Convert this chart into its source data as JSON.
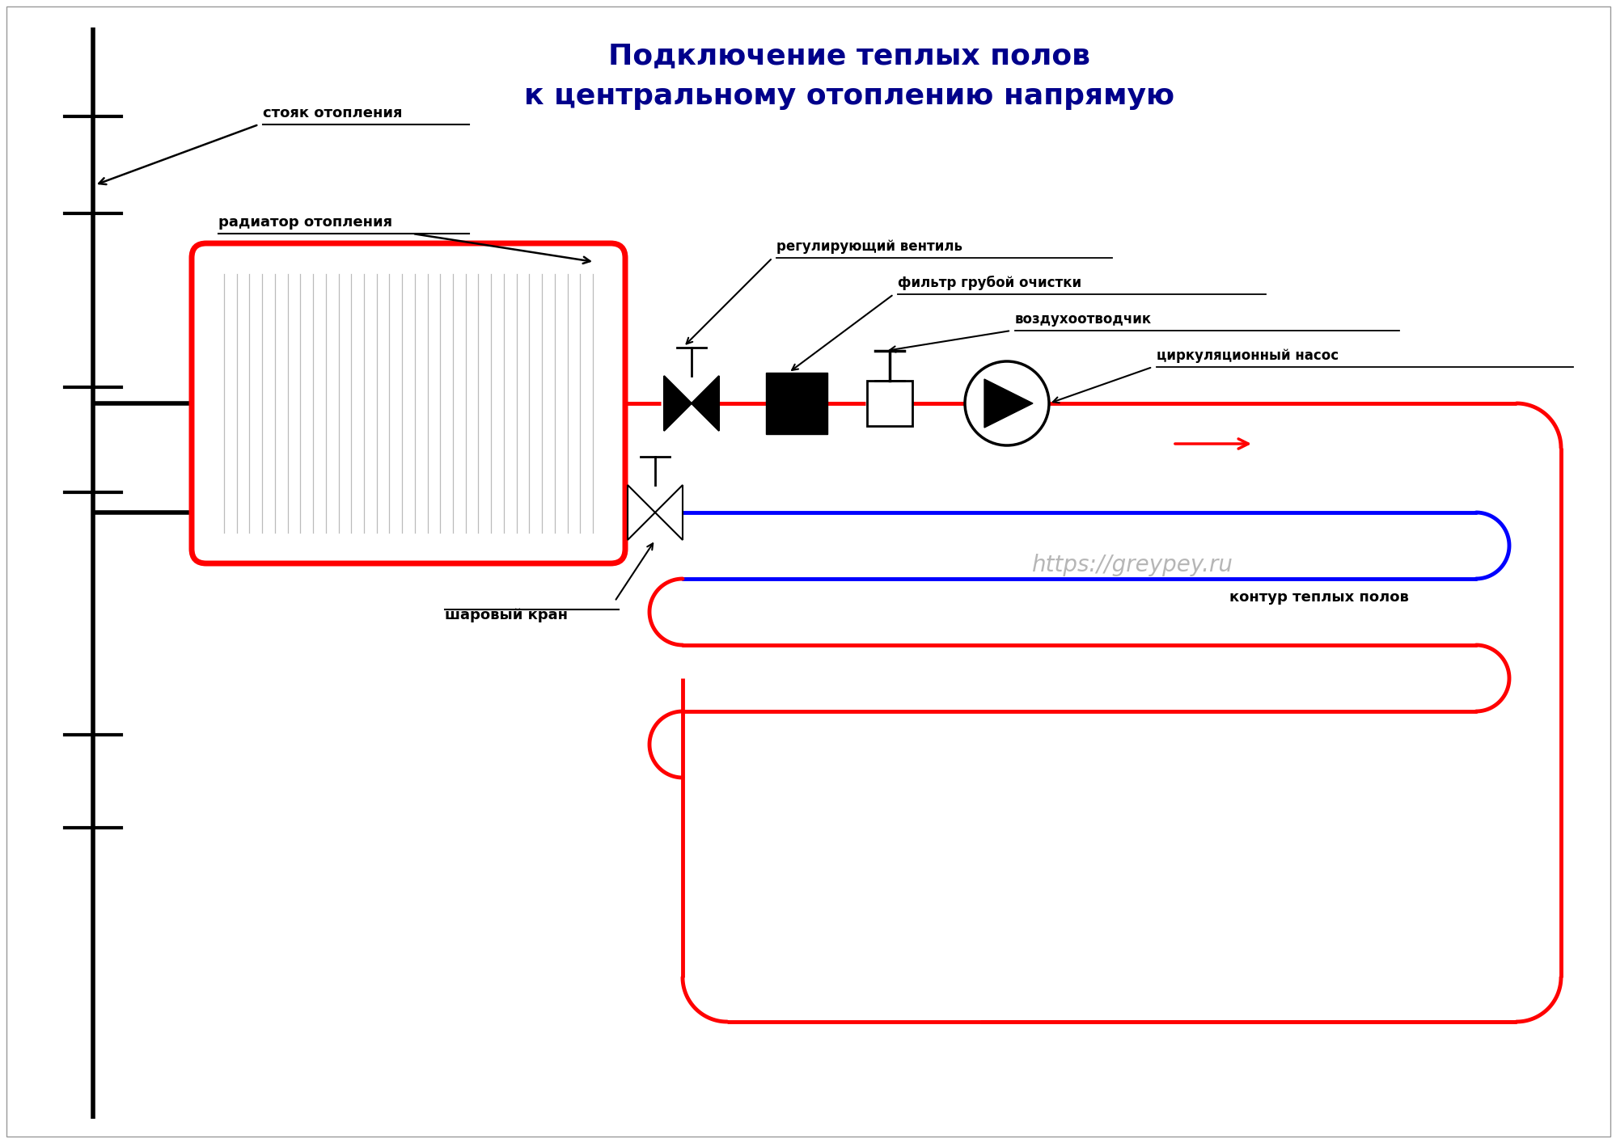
{
  "title_line1": "Подключение теплых полов",
  "title_line2": "к центральному отоплению напрямую",
  "title_color": "#00008B",
  "title_fontsize": 26,
  "bg_color": "#FFFFFF",
  "watermark": "https://greypey.ru",
  "watermark_color": "#AAAAAA",
  "label_stoyak": "стояк отопления",
  "label_radiator": "радиатор отопления",
  "label_ventil": "регулирующий вентиль",
  "label_filtr": "фильтр грубой очистки",
  "label_vozduh": "воздухоотводчик",
  "label_nasos": "циркуляционный насос",
  "label_kran": "шаровый кран",
  "label_kontur": "контур теплых полов",
  "red_color": "#FF0000",
  "blue_color": "#0000FF",
  "black_color": "#000000",
  "pipe_lw": 3.5,
  "outer_pipe_lw": 4.0
}
